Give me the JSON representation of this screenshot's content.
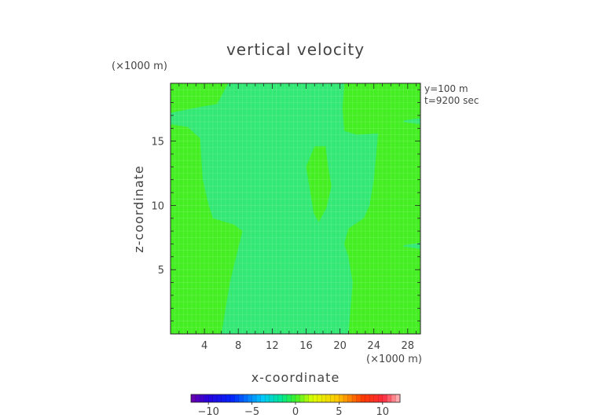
{
  "chart_data": {
    "type": "heatmap",
    "title": "vertical velocity",
    "xlabel": "x-coordinate",
    "ylabel": "z-coordinate",
    "x_unit": "(×1000 m)",
    "z_unit": "(×1000 m)",
    "annotations": [
      "y=100 m",
      "t=9200 sec"
    ],
    "xlim": [
      0,
      29.5
    ],
    "ylim": [
      0,
      19.5
    ],
    "x_ticks": [
      4,
      8,
      12,
      16,
      20,
      24,
      28
    ],
    "y_ticks": [
      5,
      10,
      15
    ],
    "grid": true,
    "colorbar": {
      "range": [
        -12,
        12
      ],
      "ticks": [
        -10,
        -5,
        0,
        5,
        10
      ],
      "tick_labels": [
        "−10",
        "−5",
        "0",
        "5",
        "10"
      ]
    },
    "fields": {
      "background": {
        "level": 0.6,
        "color": "#44ee22"
      },
      "regions": [
        {
          "name": "central-plume",
          "level": -0.2,
          "color": "#33e874",
          "polygon": [
            [
              6,
              0
            ],
            [
              7,
              4
            ],
            [
              8,
              6.7
            ],
            [
              8.5,
              8
            ],
            [
              7.5,
              8.5
            ],
            [
              5,
              9
            ],
            [
              4.5,
              10
            ],
            [
              3.8,
              12
            ],
            [
              3.6,
              14
            ],
            [
              3.5,
              15.2
            ],
            [
              2,
              16.1
            ],
            [
              0,
              16.3
            ],
            [
              0,
              17.2
            ],
            [
              3,
              17.6
            ],
            [
              5.5,
              17.9
            ],
            [
              6.8,
              19.5
            ],
            [
              20.5,
              19.5
            ],
            [
              20.3,
              17.5
            ],
            [
              20.5,
              15.8
            ],
            [
              22,
              15.5
            ],
            [
              24.5,
              15.6
            ],
            [
              24,
              12
            ],
            [
              23.5,
              10
            ],
            [
              22.8,
              9
            ],
            [
              21,
              8.2
            ],
            [
              20.5,
              7
            ],
            [
              21,
              6
            ],
            [
              21.5,
              4
            ],
            [
              21,
              0
            ]
          ]
        },
        {
          "name": "updraft-core",
          "level": 0.6,
          "color": "#44ee22",
          "polygon": [
            [
              17,
              14.6
            ],
            [
              18.3,
              14.6
            ],
            [
              18.6,
              13
            ],
            [
              19,
              11.5
            ],
            [
              18.4,
              9.8
            ],
            [
              17.5,
              8.7
            ],
            [
              16.9,
              9.4
            ],
            [
              16.5,
              11
            ],
            [
              16,
              13
            ]
          ]
        },
        {
          "name": "right-edge-streak-upper",
          "level": -0.2,
          "color": "#33e874",
          "polygon": [
            [
              27.5,
              16.5
            ],
            [
              29.5,
              16.3
            ],
            [
              29.5,
              16.8
            ],
            [
              27.5,
              16.6
            ]
          ]
        },
        {
          "name": "right-edge-streak-lower",
          "level": -0.2,
          "color": "#33e874",
          "polygon": [
            [
              27.5,
              6.8
            ],
            [
              29.5,
              6.6
            ],
            [
              29.5,
              7.1
            ],
            [
              27.5,
              6.9
            ]
          ]
        }
      ]
    }
  }
}
